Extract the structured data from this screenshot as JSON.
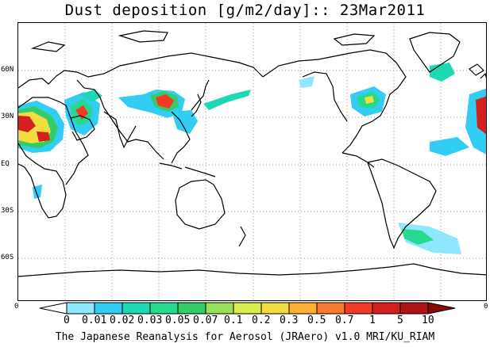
{
  "title": "Dust deposition [g/m2/day]:: 23Mar2011",
  "latitude_labels": [
    "60N",
    "30N",
    "EQ",
    "30S",
    "60S"
  ],
  "colorbar": {
    "end_labels": [
      "0",
      "0"
    ],
    "tick_labels": [
      "0",
      "0.01",
      "0.02",
      "0.03",
      "0.05",
      "0.07",
      "0.1",
      "0.2",
      "0.3",
      "0.5",
      "0.7",
      "1",
      "5",
      "10"
    ],
    "colors": [
      "#ffffff",
      "#8fe6ff",
      "#33ccf2",
      "#1ad9b3",
      "#26d98c",
      "#33cc66",
      "#99e05a",
      "#d9ed4d",
      "#f2dc40",
      "#fcb036",
      "#f87a30",
      "#f23a24",
      "#d4201c",
      "#b01414",
      "#8a0a0a"
    ]
  },
  "credit": "The Japanese Reanalysis for Aerosol (JRAero) v1.0 MRI/KU_RIAM"
}
